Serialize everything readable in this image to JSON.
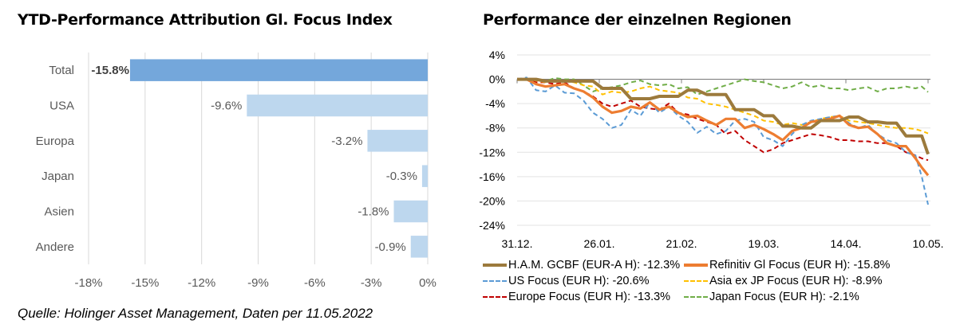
{
  "left_title": "YTD-Performance Attribution Gl. Focus Index",
  "right_title": "Performance der einzelnen Regionen",
  "source": "Quelle: Holinger Asset Management, Daten per 11.05.2022",
  "chart_data": [
    {
      "type": "bar",
      "orientation": "horizontal",
      "title": "YTD-Performance Attribution Gl. Focus Index",
      "categories": [
        "Total",
        "USA",
        "Europa",
        "Japan",
        "Asien",
        "Andere"
      ],
      "values": [
        -15.8,
        -9.6,
        -3.2,
        -0.3,
        -1.8,
        -0.9
      ],
      "data_labels": [
        "-15.8%",
        "-9.6%",
        "-3.2%",
        "-0.3%",
        "-1.8%",
        "-0.9%"
      ],
      "bar_colors": [
        "#74a7db",
        "#bdd7ee",
        "#bdd7ee",
        "#bdd7ee",
        "#bdd7ee",
        "#bdd7ee"
      ],
      "xlim": [
        -18,
        0
      ],
      "xticks": [
        -18,
        -15,
        -12,
        -9,
        -6,
        -3,
        0
      ],
      "xtick_labels": [
        "-18%",
        "-15%",
        "-12%",
        "-9%",
        "-6%",
        "-3%",
        "0%"
      ],
      "grid": true,
      "xlabel": "",
      "ylabel": ""
    },
    {
      "type": "line",
      "title": "Performance der einzelnen Regionen",
      "ylim": [
        -24,
        4
      ],
      "yticks": [
        4,
        0,
        -4,
        -8,
        -12,
        -16,
        -20,
        -24
      ],
      "ytick_labels": [
        "4%",
        "0%",
        "-4%",
        "-8%",
        "-12%",
        "-16%",
        "-20%",
        "-24%"
      ],
      "x_range_days": [
        0,
        130
      ],
      "xticks_days": [
        0,
        26,
        52,
        78,
        104,
        130
      ],
      "xtick_labels": [
        "31.12.",
        "26.01.",
        "21.02.",
        "19.03.",
        "14.04.",
        "10.05."
      ],
      "grid": true,
      "legend_position": "bottom",
      "x_days": [
        0,
        3,
        6,
        9,
        12,
        15,
        18,
        21,
        24,
        27,
        30,
        33,
        36,
        39,
        42,
        45,
        48,
        51,
        54,
        57,
        60,
        63,
        66,
        69,
        72,
        75,
        78,
        81,
        84,
        87,
        90,
        93,
        96,
        99,
        102,
        105,
        108,
        111,
        114,
        117,
        120,
        123,
        126,
        128,
        130
      ],
      "series": [
        {
          "name": "H.A.M. GCBF (EUR-A H): -12.3%",
          "color": "#9c7a3c",
          "style": "solid-thick",
          "values": [
            0,
            0,
            0,
            -0.3,
            -0.3,
            -0.3,
            -0.3,
            -0.3,
            -0.3,
            -1.5,
            -1.5,
            -1.5,
            -3.2,
            -3.2,
            -3.2,
            -2.8,
            -2.8,
            -2.8,
            -1.8,
            -1.8,
            -2.5,
            -2.5,
            -2.5,
            -5,
            -5,
            -5,
            -6,
            -6,
            -7.7,
            -7.7,
            -8,
            -8,
            -6.8,
            -6.8,
            -6.8,
            -6.2,
            -6.2,
            -7,
            -7,
            -7.2,
            -7.2,
            -9.3,
            -9.3,
            -9.3,
            -12.3
          ]
        },
        {
          "name": "Refinitiv Gl Focus (EUR H): -15.8%",
          "color": "#ed7d31",
          "style": "solid",
          "values": [
            0,
            0,
            -0.8,
            -1.2,
            -1,
            -0.8,
            -1.5,
            -2,
            -3,
            -4.5,
            -5.5,
            -5.2,
            -4.5,
            -4.8,
            -3.8,
            -5,
            -4.5,
            -5.5,
            -6.2,
            -6,
            -6.8,
            -7.5,
            -6.5,
            -6.5,
            -8,
            -7.5,
            -8.2,
            -9,
            -10,
            -8.5,
            -8,
            -7,
            -6.8,
            -6.5,
            -6,
            -7.5,
            -8,
            -7.8,
            -9,
            -10.5,
            -11,
            -11,
            -13,
            -14.5,
            -15.8
          ]
        },
        {
          "name": "US Focus (EUR H): -20.6%",
          "color": "#5b9bd5",
          "style": "dashed",
          "values": [
            0,
            0.3,
            -1.8,
            -2,
            -1,
            -2.2,
            -2.3,
            -3.5,
            -5.5,
            -6.5,
            -8,
            -7.5,
            -5,
            -6,
            -3.8,
            -5.5,
            -4.5,
            -6,
            -7,
            -8.8,
            -7.8,
            -9,
            -8.5,
            -6.8,
            -6.5,
            -7,
            -9.5,
            -10,
            -11,
            -9,
            -7.5,
            -6.8,
            -6.5,
            -6.2,
            -6,
            -7.2,
            -8,
            -7.5,
            -9,
            -10,
            -10.5,
            -12,
            -12.5,
            -16,
            -20.6
          ]
        },
        {
          "name": "Asia ex JP Focus (EUR H): -8.9%",
          "color": "#ffc000",
          "style": "dashed",
          "values": [
            0,
            0,
            -0.2,
            -0.5,
            -0.2,
            -0.3,
            -0.5,
            -1,
            -1.2,
            -2.5,
            -2,
            -2.2,
            -2,
            -1.5,
            -1.2,
            -1.8,
            -2,
            -2.2,
            -3,
            -3.2,
            -4,
            -4.2,
            -4.5,
            -5,
            -5.5,
            -6,
            -6.8,
            -7,
            -7.5,
            -7.2,
            -7.5,
            -7,
            -6.5,
            -6.2,
            -6,
            -6.8,
            -7,
            -7.2,
            -7.5,
            -7.8,
            -8,
            -8,
            -8.2,
            -8.5,
            -8.9
          ]
        },
        {
          "name": "Europe Focus (EUR H): -13.3%",
          "color": "#c00000",
          "style": "dashed",
          "values": [
            0,
            0,
            -0.5,
            -0.5,
            -0.8,
            -0.5,
            -1.5,
            -2,
            -2.8,
            -4,
            -4.5,
            -4,
            -3.5,
            -4.5,
            -4.8,
            -5,
            -4,
            -5.5,
            -5.8,
            -6.5,
            -7,
            -7.5,
            -9,
            -8.5,
            -10,
            -11,
            -12,
            -11.5,
            -10.5,
            -10,
            -9.5,
            -9,
            -9.2,
            -9.5,
            -10,
            -10,
            -10.2,
            -10.2,
            -10.5,
            -10.5,
            -11,
            -12,
            -12.5,
            -13,
            -13.3
          ]
        },
        {
          "name": "Japan Focus (EUR H): -2.1%",
          "color": "#70ad47",
          "style": "dashed",
          "values": [
            0,
            0,
            -0.2,
            -0.3,
            0.2,
            0,
            0,
            -1,
            -2,
            -1.5,
            -1.3,
            -1,
            -0.5,
            -0.2,
            -0.8,
            -1,
            -0.8,
            -1.5,
            -1.3,
            -2.5,
            -2,
            -1.5,
            -1,
            -0.5,
            0,
            -0.3,
            -0.5,
            -1,
            -1.5,
            -1.2,
            -0.5,
            -1.3,
            -1,
            -1.5,
            -1.5,
            -1.8,
            -1.5,
            -1.3,
            -2,
            -1.5,
            -1.5,
            -1.2,
            -1.5,
            -1.2,
            -2.1
          ]
        }
      ]
    }
  ]
}
